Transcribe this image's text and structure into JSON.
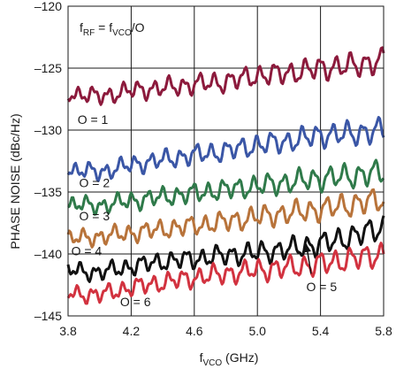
{
  "chart_data": {
    "type": "line",
    "xlabel": "f",
    "xlabel_sub": "VCO",
    "xlabel_unit": " (GHz)",
    "ylabel": "PHASE NOISE (dBc/Hz)",
    "xlim": [
      3.8,
      5.8
    ],
    "ylim": [
      -145,
      -120
    ],
    "x_ticks": [
      3.8,
      4.2,
      4.6,
      5.0,
      5.4,
      5.8
    ],
    "x_tick_labels": [
      "3.8",
      "4.2",
      "4.6",
      "5.0",
      "5.4",
      "5.8"
    ],
    "y_ticks": [
      -145,
      -140,
      -135,
      -130,
      -125,
      -120
    ],
    "y_tick_labels": [
      "–145",
      "–140",
      "–135",
      "–130",
      "–125",
      "–120"
    ],
    "grid": true,
    "annotation": {
      "f1": "f",
      "f1_sub": "RF",
      "eq": " = f",
      "f2_sub": "VCO",
      "tail": "/O"
    },
    "series": [
      {
        "name": "O=1",
        "label": "O = 1",
        "color": "#8c1a3c",
        "x": [
          3.8,
          4.0,
          4.2,
          4.4,
          4.6,
          4.8,
          5.0,
          5.2,
          5.4,
          5.6,
          5.8
        ],
        "y": [
          -127.0,
          -127.3,
          -126.8,
          -126.6,
          -126.3,
          -126.1,
          -125.6,
          -125.4,
          -125.0,
          -124.8,
          -124.4
        ]
      },
      {
        "name": "O=2",
        "label": "O = 2",
        "color": "#3a56a6",
        "x": [
          3.8,
          4.0,
          4.2,
          4.4,
          4.6,
          4.8,
          5.0,
          5.2,
          5.4,
          5.6,
          5.8
        ],
        "y": [
          -133.2,
          -133.4,
          -132.8,
          -132.4,
          -132.0,
          -131.7,
          -131.2,
          -130.9,
          -130.4,
          -130.3,
          -130.0
        ]
      },
      {
        "name": "O=3",
        "label": "O = 3",
        "color": "#2f7a4a",
        "x": [
          3.8,
          4.0,
          4.2,
          4.4,
          4.6,
          4.8,
          5.0,
          5.2,
          5.4,
          5.6,
          5.8
        ],
        "y": [
          -136.0,
          -136.1,
          -135.7,
          -135.4,
          -135.1,
          -134.8,
          -134.5,
          -134.2,
          -133.9,
          -133.7,
          -133.4
        ]
      },
      {
        "name": "O=4",
        "label": "O = 4",
        "color": "#b8733a",
        "x": [
          3.8,
          4.0,
          4.2,
          4.4,
          4.6,
          4.8,
          5.0,
          5.2,
          5.4,
          5.6,
          5.8
        ],
        "y": [
          -138.8,
          -138.6,
          -138.3,
          -138.0,
          -137.7,
          -137.4,
          -137.0,
          -136.7,
          -136.4,
          -136.0,
          -135.6
        ]
      },
      {
        "name": "O=5",
        "label": "O = 5",
        "color": "#111111",
        "x": [
          3.8,
          4.0,
          4.2,
          4.4,
          4.6,
          4.8,
          5.0,
          5.2,
          5.4,
          5.6,
          5.8
        ],
        "y": [
          -141.3,
          -141.5,
          -141.0,
          -140.6,
          -140.4,
          -140.1,
          -139.9,
          -139.6,
          -139.2,
          -138.6,
          -137.8
        ]
      },
      {
        "name": "O=6",
        "label": "O = 6",
        "color": "#d2323f",
        "x": [
          3.8,
          4.0,
          4.2,
          4.4,
          4.6,
          4.8,
          5.0,
          5.2,
          5.4,
          5.6,
          5.8
        ],
        "y": [
          -143.2,
          -143.3,
          -142.7,
          -142.3,
          -141.9,
          -141.6,
          -141.3,
          -141.1,
          -140.8,
          -140.4,
          -140.0
        ]
      }
    ]
  }
}
